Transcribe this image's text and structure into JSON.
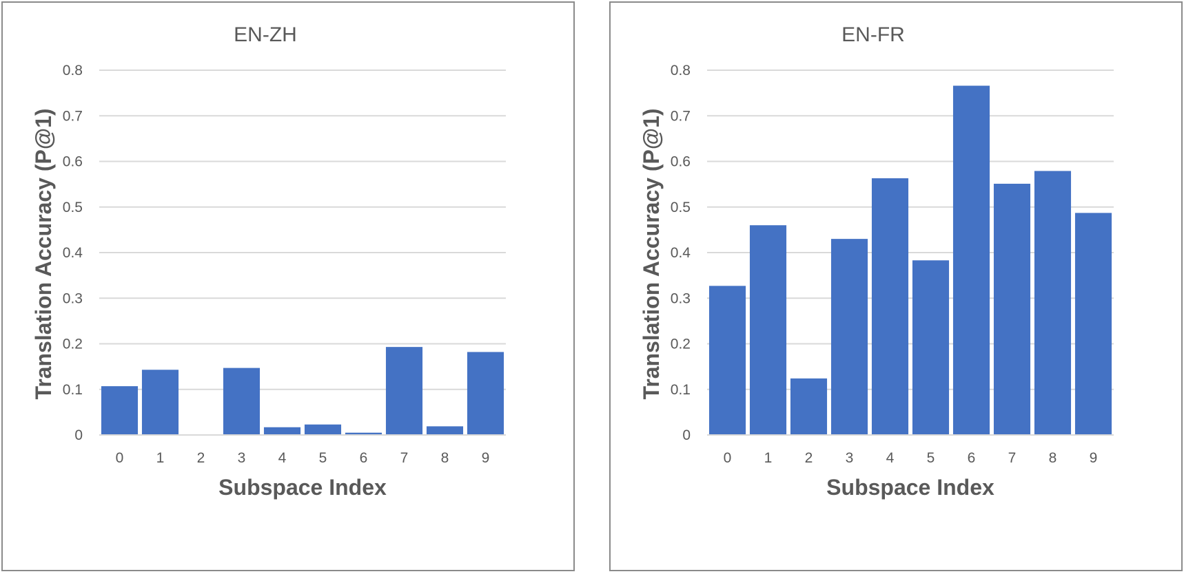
{
  "chart_data": [
    {
      "type": "bar",
      "title": "EN-ZH",
      "xlabel": "Subspace Index",
      "ylabel": "Translation Accuracy (P@1)",
      "categories": [
        "0",
        "1",
        "2",
        "3",
        "4",
        "5",
        "6",
        "7",
        "8",
        "9"
      ],
      "values": [
        0.107,
        0.143,
        0.0,
        0.147,
        0.017,
        0.023,
        0.005,
        0.193,
        0.019,
        0.182
      ],
      "ylim": [
        0,
        0.8
      ],
      "yticks": [
        "0",
        "0.1",
        "0.2",
        "0.3",
        "0.4",
        "0.5",
        "0.6",
        "0.7",
        "0.8"
      ],
      "grid": true,
      "bar_color": "#4472c4"
    },
    {
      "type": "bar",
      "title": "EN-FR",
      "xlabel": "Subspace Index",
      "ylabel": "Translation Accuracy (P@1)",
      "categories": [
        "0",
        "1",
        "2",
        "3",
        "4",
        "5",
        "6",
        "7",
        "8",
        "9"
      ],
      "values": [
        0.327,
        0.46,
        0.124,
        0.43,
        0.563,
        0.383,
        0.766,
        0.551,
        0.579,
        0.487
      ],
      "ylim": [
        0,
        0.8
      ],
      "yticks": [
        "0",
        "0.1",
        "0.2",
        "0.3",
        "0.4",
        "0.5",
        "0.6",
        "0.7",
        "0.8"
      ],
      "grid": true,
      "bar_color": "#4472c4"
    }
  ]
}
